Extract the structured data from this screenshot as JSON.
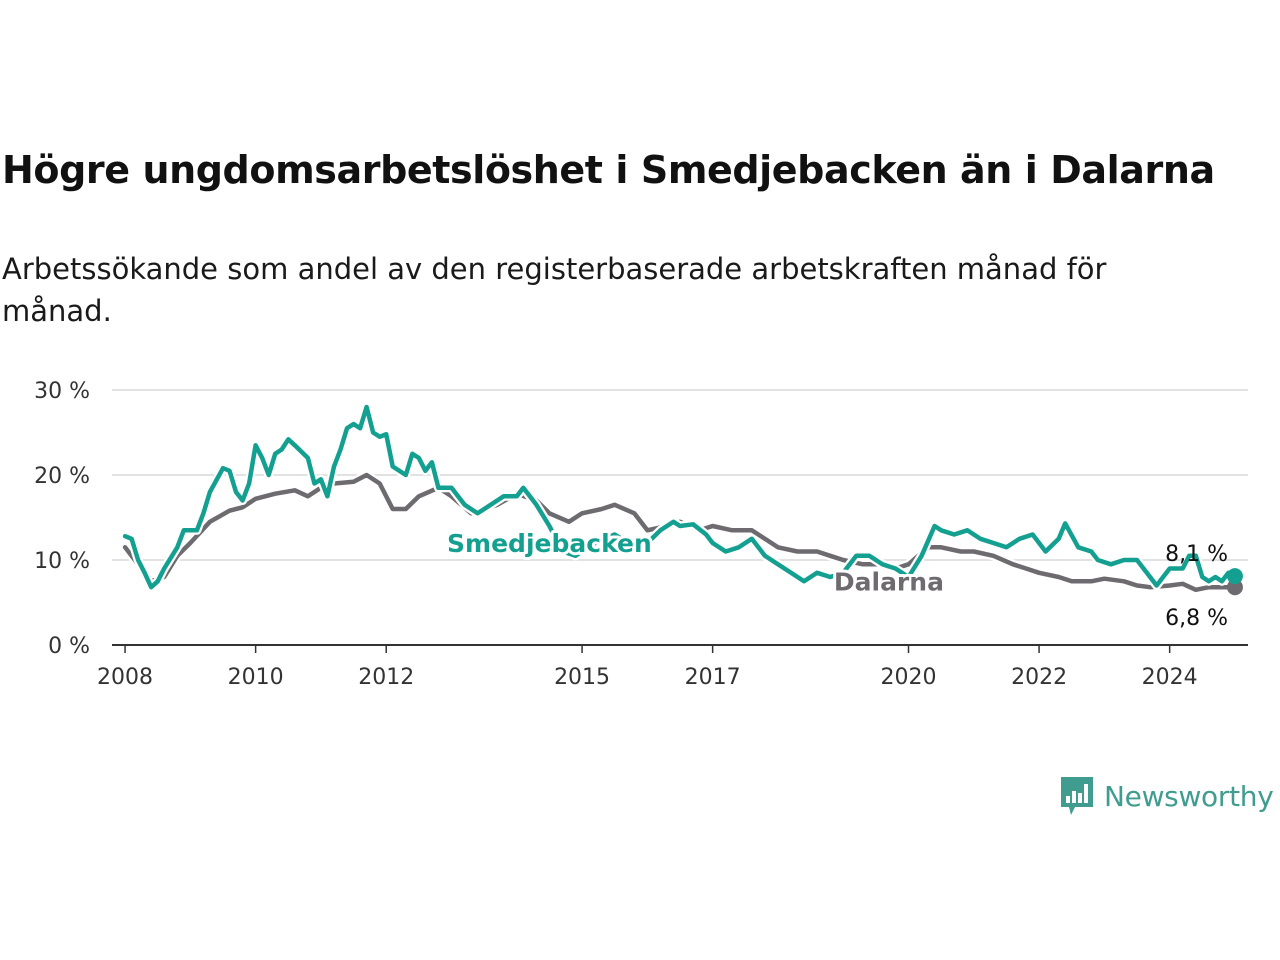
{
  "title": "Högre ungdomsarbetslöshet i Smedjebacken än i Dalarna",
  "subtitle": "Arbetssökande som andel av den registerbaserade arbetskraften månad för månad.",
  "logo": {
    "icon": "newsworthy-bar-chart-icon",
    "text": "Newsworthy",
    "color": "#3f9c8f"
  },
  "chart_data": {
    "type": "line",
    "x_axis": {
      "range": [
        2007.8,
        2025.2
      ],
      "tick_labels": [
        "2008",
        "2010",
        "2012",
        "2015",
        "2017",
        "2020",
        "2022",
        "2024"
      ],
      "tick_values": [
        2008,
        2010,
        2012,
        2015,
        2017,
        2020,
        2022,
        2024
      ]
    },
    "y_axis": {
      "range": [
        0,
        30
      ],
      "tick_labels": [
        "0 %",
        "10 %",
        "20 %",
        "30 %"
      ],
      "tick_values": [
        0,
        10,
        20,
        30
      ],
      "grid": true
    },
    "series": [
      {
        "name": "Dalarna",
        "color": "#6e6b70",
        "end_label": "6,8 %",
        "points": [
          [
            2008.0,
            11.5
          ],
          [
            2008.2,
            9.5
          ],
          [
            2008.4,
            7.5
          ],
          [
            2008.6,
            8.0
          ],
          [
            2008.8,
            10.5
          ],
          [
            2009.0,
            12.0
          ],
          [
            2009.3,
            14.5
          ],
          [
            2009.6,
            15.8
          ],
          [
            2009.8,
            16.2
          ],
          [
            2010.0,
            17.2
          ],
          [
            2010.3,
            17.8
          ],
          [
            2010.6,
            18.2
          ],
          [
            2010.8,
            17.5
          ],
          [
            2011.0,
            18.5
          ],
          [
            2011.2,
            19.0
          ],
          [
            2011.5,
            19.2
          ],
          [
            2011.7,
            20.0
          ],
          [
            2011.9,
            19.0
          ],
          [
            2012.1,
            16.0
          ],
          [
            2012.3,
            16.0
          ],
          [
            2012.5,
            17.5
          ],
          [
            2012.8,
            18.5
          ],
          [
            2013.0,
            17.5
          ],
          [
            2013.3,
            15.5
          ],
          [
            2013.5,
            16.0
          ],
          [
            2013.7,
            16.5
          ],
          [
            2014.0,
            17.8
          ],
          [
            2014.3,
            17.0
          ],
          [
            2014.5,
            15.5
          ],
          [
            2014.8,
            14.5
          ],
          [
            2015.0,
            15.5
          ],
          [
            2015.3,
            16.0
          ],
          [
            2015.5,
            16.5
          ],
          [
            2015.8,
            15.5
          ],
          [
            2016.0,
            13.5
          ],
          [
            2016.3,
            14.0
          ],
          [
            2016.5,
            14.5
          ],
          [
            2016.8,
            13.5
          ],
          [
            2017.0,
            14.0
          ],
          [
            2017.3,
            13.5
          ],
          [
            2017.6,
            13.5
          ],
          [
            2017.8,
            12.5
          ],
          [
            2018.0,
            11.5
          ],
          [
            2018.3,
            11.0
          ],
          [
            2018.6,
            11.0
          ],
          [
            2018.8,
            10.5
          ],
          [
            2019.0,
            10.0
          ],
          [
            2019.3,
            9.5
          ],
          [
            2019.6,
            9.5
          ],
          [
            2019.8,
            9.0
          ],
          [
            2020.0,
            9.5
          ],
          [
            2020.3,
            11.5
          ],
          [
            2020.5,
            11.5
          ],
          [
            2020.8,
            11.0
          ],
          [
            2021.0,
            11.0
          ],
          [
            2021.3,
            10.5
          ],
          [
            2021.6,
            9.5
          ],
          [
            2021.8,
            9.0
          ],
          [
            2022.0,
            8.5
          ],
          [
            2022.3,
            8.0
          ],
          [
            2022.5,
            7.5
          ],
          [
            2022.8,
            7.5
          ],
          [
            2023.0,
            7.8
          ],
          [
            2023.3,
            7.5
          ],
          [
            2023.5,
            7.0
          ],
          [
            2023.7,
            6.8
          ],
          [
            2024.0,
            7.0
          ],
          [
            2024.2,
            7.2
          ],
          [
            2024.4,
            6.5
          ],
          [
            2024.6,
            6.8
          ],
          [
            2024.8,
            6.8
          ],
          [
            2025.0,
            6.8
          ]
        ]
      },
      {
        "name": "Smedjebacken",
        "color": "#14a090",
        "end_label": "8,1 %",
        "points": [
          [
            2008.0,
            12.8
          ],
          [
            2008.1,
            12.5
          ],
          [
            2008.2,
            10.0
          ],
          [
            2008.3,
            8.5
          ],
          [
            2008.4,
            6.8
          ],
          [
            2008.5,
            7.5
          ],
          [
            2008.6,
            9.0
          ],
          [
            2008.8,
            11.5
          ],
          [
            2008.9,
            13.5
          ],
          [
            2009.1,
            13.5
          ],
          [
            2009.2,
            15.5
          ],
          [
            2009.3,
            18.0
          ],
          [
            2009.5,
            20.8
          ],
          [
            2009.6,
            20.5
          ],
          [
            2009.7,
            18.0
          ],
          [
            2009.8,
            17.0
          ],
          [
            2009.9,
            19.0
          ],
          [
            2010.0,
            23.5
          ],
          [
            2010.1,
            22.0
          ],
          [
            2010.2,
            20.0
          ],
          [
            2010.3,
            22.5
          ],
          [
            2010.4,
            23.0
          ],
          [
            2010.5,
            24.2
          ],
          [
            2010.6,
            23.5
          ],
          [
            2010.8,
            22.0
          ],
          [
            2010.9,
            19.0
          ],
          [
            2011.0,
            19.5
          ],
          [
            2011.1,
            17.5
          ],
          [
            2011.2,
            21.0
          ],
          [
            2011.3,
            23.0
          ],
          [
            2011.4,
            25.5
          ],
          [
            2011.5,
            26.0
          ],
          [
            2011.6,
            25.5
          ],
          [
            2011.7,
            28.0
          ],
          [
            2011.8,
            25.0
          ],
          [
            2011.9,
            24.5
          ],
          [
            2012.0,
            24.8
          ],
          [
            2012.1,
            21.0
          ],
          [
            2012.2,
            20.5
          ],
          [
            2012.3,
            20.0
          ],
          [
            2012.4,
            22.5
          ],
          [
            2012.5,
            22.0
          ],
          [
            2012.6,
            20.5
          ],
          [
            2012.7,
            21.5
          ],
          [
            2012.8,
            18.5
          ],
          [
            2013.0,
            18.5
          ],
          [
            2013.2,
            16.5
          ],
          [
            2013.4,
            15.5
          ],
          [
            2013.6,
            16.5
          ],
          [
            2013.8,
            17.5
          ],
          [
            2014.0,
            17.5
          ],
          [
            2014.1,
            18.5
          ],
          [
            2014.3,
            16.5
          ],
          [
            2014.5,
            14.0
          ],
          [
            2014.7,
            11.0
          ],
          [
            2014.9,
            10.5
          ],
          [
            2015.2,
            12.0
          ],
          [
            2015.5,
            13.0
          ],
          [
            2015.8,
            11.5
          ],
          [
            2016.0,
            12.0
          ],
          [
            2016.2,
            13.5
          ],
          [
            2016.4,
            14.5
          ],
          [
            2016.5,
            14.0
          ],
          [
            2016.7,
            14.2
          ],
          [
            2016.9,
            13.0
          ],
          [
            2017.0,
            12.0
          ],
          [
            2017.2,
            11.0
          ],
          [
            2017.4,
            11.5
          ],
          [
            2017.6,
            12.5
          ],
          [
            2017.8,
            10.5
          ],
          [
            2018.0,
            9.5
          ],
          [
            2018.2,
            8.5
          ],
          [
            2018.4,
            7.5
          ],
          [
            2018.6,
            8.5
          ],
          [
            2018.8,
            8.0
          ],
          [
            2019.0,
            8.5
          ],
          [
            2019.2,
            10.5
          ],
          [
            2019.4,
            10.5
          ],
          [
            2019.6,
            9.5
          ],
          [
            2019.8,
            9.0
          ],
          [
            2020.0,
            8.0
          ],
          [
            2020.2,
            10.5
          ],
          [
            2020.4,
            14.0
          ],
          [
            2020.5,
            13.5
          ],
          [
            2020.7,
            13.0
          ],
          [
            2020.9,
            13.5
          ],
          [
            2021.1,
            12.5
          ],
          [
            2021.3,
            12.0
          ],
          [
            2021.5,
            11.5
          ],
          [
            2021.7,
            12.5
          ],
          [
            2021.9,
            13.0
          ],
          [
            2022.0,
            12.0
          ],
          [
            2022.1,
            11.0
          ],
          [
            2022.3,
            12.5
          ],
          [
            2022.4,
            14.3
          ],
          [
            2022.6,
            11.5
          ],
          [
            2022.8,
            11.0
          ],
          [
            2022.9,
            10.0
          ],
          [
            2023.1,
            9.5
          ],
          [
            2023.3,
            10.0
          ],
          [
            2023.5,
            10.0
          ],
          [
            2023.6,
            9.0
          ],
          [
            2023.8,
            7.0
          ],
          [
            2024.0,
            9.0
          ],
          [
            2024.2,
            9.0
          ],
          [
            2024.3,
            10.5
          ],
          [
            2024.4,
            10.5
          ],
          [
            2024.5,
            8.0
          ],
          [
            2024.6,
            7.5
          ],
          [
            2024.7,
            8.0
          ],
          [
            2024.8,
            7.5
          ],
          [
            2024.9,
            8.5
          ],
          [
            2025.0,
            8.1
          ]
        ]
      }
    ],
    "annotations": [
      {
        "text": "Smedjebacken",
        "series": "Smedjebacken",
        "anchor_x": 2014.5,
        "anchor_y": 12.0
      },
      {
        "text": "Dalarna",
        "series": "Dalarna",
        "anchor_x": 2019.7,
        "anchor_y": 7.5
      }
    ]
  }
}
